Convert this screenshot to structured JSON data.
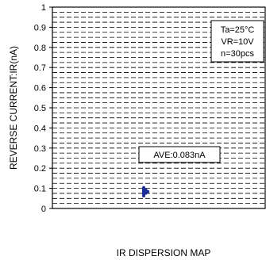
{
  "chart_data": {
    "type": "scatter",
    "ylabel": "REVERSE CURRENT:IR(nA)",
    "xlabel": "",
    "caption": "IR DISPERSION MAP",
    "ylim": [
      0,
      1
    ],
    "yticks": [
      "0",
      "0.1",
      "0.2",
      "0.3",
      "0.4",
      "0.5",
      "0.6",
      "0.7",
      "0.8",
      "0.9",
      "1"
    ],
    "grid": true,
    "conditions": [
      "Ta=25°C",
      "VR=10V",
      "n=30pcs"
    ],
    "average_label": "AVE:0.083nA",
    "point_color": "#1f2f99",
    "values": [
      0.062,
      0.065,
      0.068,
      0.07,
      0.072,
      0.073,
      0.075,
      0.076,
      0.077,
      0.078,
      0.079,
      0.08,
      0.081,
      0.082,
      0.083,
      0.083,
      0.084,
      0.085,
      0.086,
      0.087,
      0.088,
      0.089,
      0.09,
      0.091,
      0.092,
      0.094,
      0.096,
      0.098,
      0.101,
      0.104
    ]
  }
}
